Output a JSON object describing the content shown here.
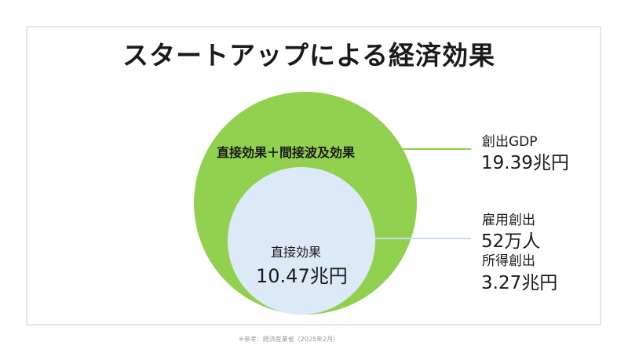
{
  "title": "スタートアップによる経済効果",
  "colors": {
    "outer_circle": "#92d050",
    "inner_circle": "#dce9f7",
    "outer_leader": "#8fcf4a",
    "inner_leader": "#c9dcf1"
  },
  "outer_circle": {
    "label": "直接効果＋間接波及効果"
  },
  "inner_circle": {
    "label": "直接効果",
    "value": "10.47兆円"
  },
  "side": {
    "gdp_label": "創出GDP",
    "gdp_value": "19.39兆円",
    "employment_label": "雇用創出",
    "employment_value": "52万人",
    "income_label": "所得創出",
    "income_value": "3.27兆円"
  },
  "source": "※参考：経済産業省（2025年2月）"
}
